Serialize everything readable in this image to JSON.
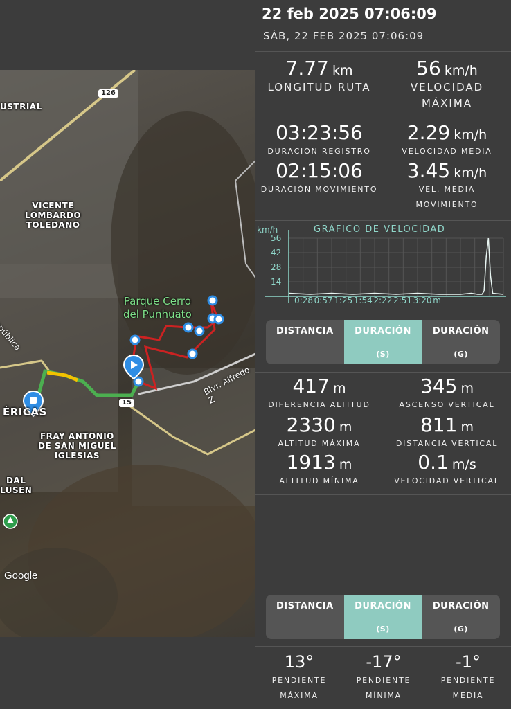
{
  "header": {
    "date_main": "22 feb 2025 07:06:09",
    "date_sub": "SÁB, 22 FEB 2025 07:06:09"
  },
  "map": {
    "labels": {
      "industrial": "USTRIAL",
      "vicente": "VICENTE\nLOMBARDO\nTOLEDANO",
      "park": "Parque Cerro\ndel Punhuato",
      "americas": "ÉRICAS",
      "fray": "FRAY ANTONIO\nDE SAN MIGUEL\nIGLESIAS",
      "dal": "DAL\nLUSEN",
      "republica": "epública",
      "blvd": "Blvr. Alfredo Z",
      "road_126": "126",
      "road_15": "15",
      "google": "Google"
    },
    "colors": {
      "route": "#cc2222",
      "traffic_green": "#4caf50",
      "traffic_yellow": "#f2c200",
      "pin": "#2f8de4"
    }
  },
  "summary": {
    "distance": {
      "value": "7.77",
      "unit": "km",
      "label": "LONGITUD RUTA"
    },
    "max_speed": {
      "value": "56",
      "unit": "km/h",
      "label1": "VELOCIDAD",
      "label2": "MÁXIMA"
    }
  },
  "durations": {
    "record": {
      "value": "03:23:56",
      "label": "DURACIÓN REGISTRO"
    },
    "avg_speed": {
      "value": "2.29",
      "unit": "km/h",
      "label": "VELOCIDAD MEDIA"
    },
    "moving": {
      "value": "02:15:06",
      "label": "DURACIÓN MOVIMIENTO"
    },
    "moving_speed": {
      "value": "3.45",
      "unit": "km/h",
      "label1": "VEL. MEDIA",
      "label2": "MOVIMIENTO"
    }
  },
  "chart_data": {
    "type": "line",
    "title": "GRÁFICO DE VELOCIDAD",
    "ylabel": "km/h",
    "yticks": [
      "56",
      "42",
      "28",
      "14"
    ],
    "xticks": [
      "0:28",
      "0:57",
      "1:25",
      "1:54",
      "2:22",
      "2:51",
      "3:20",
      "m"
    ],
    "ylim": [
      0,
      56
    ],
    "x": [
      0,
      0.1,
      0.2,
      0.3,
      0.4,
      0.5,
      0.6,
      0.7,
      0.8,
      0.85,
      0.88,
      0.9,
      0.91,
      0.92,
      0.93,
      0.94,
      0.95,
      1.0
    ],
    "values": [
      3,
      2,
      3,
      2,
      3,
      2,
      3,
      2,
      2,
      3,
      2,
      2,
      5,
      38,
      56,
      20,
      3,
      2
    ]
  },
  "toggle1": {
    "options": [
      {
        "label": "DISTANCIA",
        "sub": ""
      },
      {
        "label": "DURACIÓN",
        "sub": "(S)"
      },
      {
        "label": "DURACIÓN",
        "sub": "(G)"
      }
    ]
  },
  "altitude": {
    "diff": {
      "value": "417",
      "unit": "m",
      "label": "DIFERENCIA ALTITUD"
    },
    "ascent": {
      "value": "345",
      "unit": "m",
      "label": "ASCENSO VERTICAL"
    },
    "max": {
      "value": "2330",
      "unit": "m",
      "label": "ALTITUD MÁXIMA"
    },
    "vdist": {
      "value": "811",
      "unit": "m",
      "label": "DISTANCIA VERTICAL"
    },
    "min": {
      "value": "1913",
      "unit": "m",
      "label": "ALTITUD MÍNIMA"
    },
    "vspeed": {
      "value": "0.1",
      "unit": "m/s",
      "label": "VELOCIDAD VERTICAL"
    }
  },
  "toggle2": {
    "options": [
      {
        "label": "DISTANCIA",
        "sub": ""
      },
      {
        "label": "DURACIÓN",
        "sub": "(S)"
      },
      {
        "label": "DURACIÓN",
        "sub": "(G)"
      }
    ]
  },
  "slopes": {
    "max": {
      "value": "13°",
      "label1": "PENDIENTE",
      "label2": "MÁXIMA"
    },
    "min": {
      "value": "-17°",
      "label1": "PENDIENTE",
      "label2": "MÍNIMA"
    },
    "avg": {
      "value": "-1°",
      "label1": "PENDIENTE",
      "label2": "MEDIA"
    }
  }
}
